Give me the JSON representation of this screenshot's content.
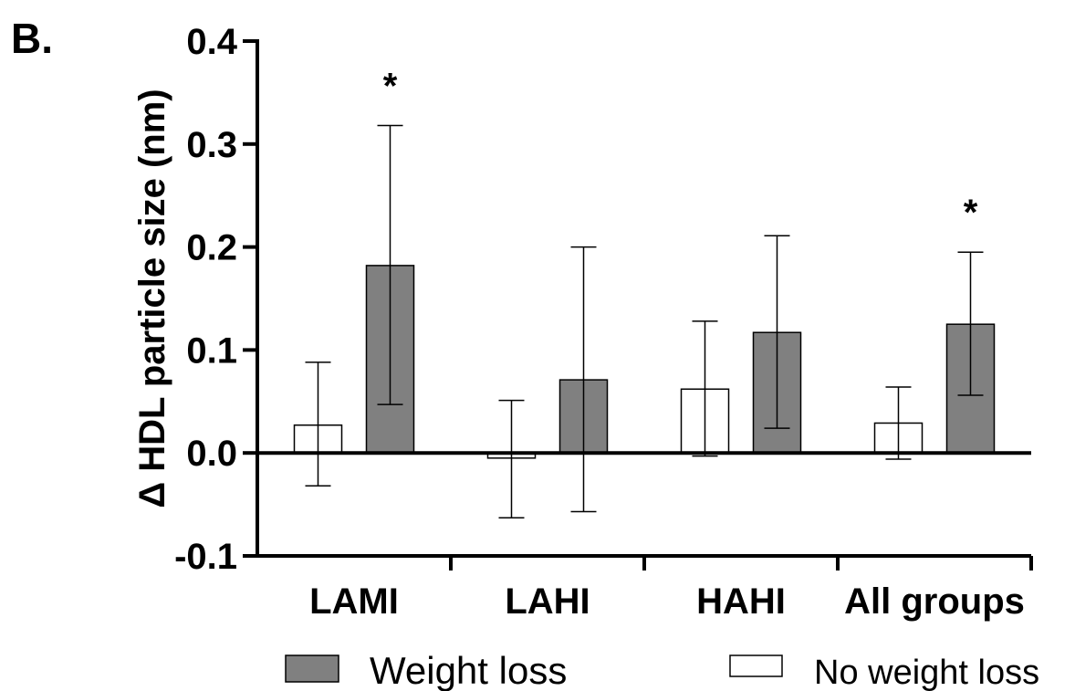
{
  "panel_label": "B.",
  "chart_data": {
    "type": "bar",
    "title": "",
    "ylabel": "Δ HDL particle size (nm)",
    "xlabel": "",
    "ylim": [
      -0.1,
      0.4
    ],
    "yticks": [
      -0.1,
      0.0,
      0.1,
      0.2,
      0.3,
      0.4
    ],
    "ytick_labels": [
      "-0.1",
      "0.0",
      "0.1",
      "0.2",
      "0.3",
      "0.4"
    ],
    "categories": [
      "LAMI",
      "LAHI",
      "HAHI",
      "All groups"
    ],
    "series": [
      {
        "name": "No weight loss",
        "color": "#ffffff",
        "values": [
          0.027,
          -0.005,
          0.062,
          0.029
        ],
        "err_low": [
          -0.032,
          -0.063,
          -0.003,
          -0.006
        ],
        "err_high": [
          0.088,
          0.051,
          0.128,
          0.064
        ]
      },
      {
        "name": "Weight loss",
        "color": "#808080",
        "values": [
          0.182,
          0.071,
          0.117,
          0.125
        ],
        "err_low": [
          0.047,
          -0.057,
          0.024,
          0.056
        ],
        "err_high": [
          0.318,
          0.2,
          0.211,
          0.195
        ]
      }
    ],
    "annotations": [
      {
        "text": "*",
        "category": "LAMI",
        "series": "Weight loss"
      },
      {
        "text": "*",
        "category": "All groups",
        "series": "Weight loss"
      }
    ],
    "legend": {
      "placement": "bottom",
      "order": [
        "Weight loss",
        "No weight loss"
      ]
    },
    "grid": false
  }
}
